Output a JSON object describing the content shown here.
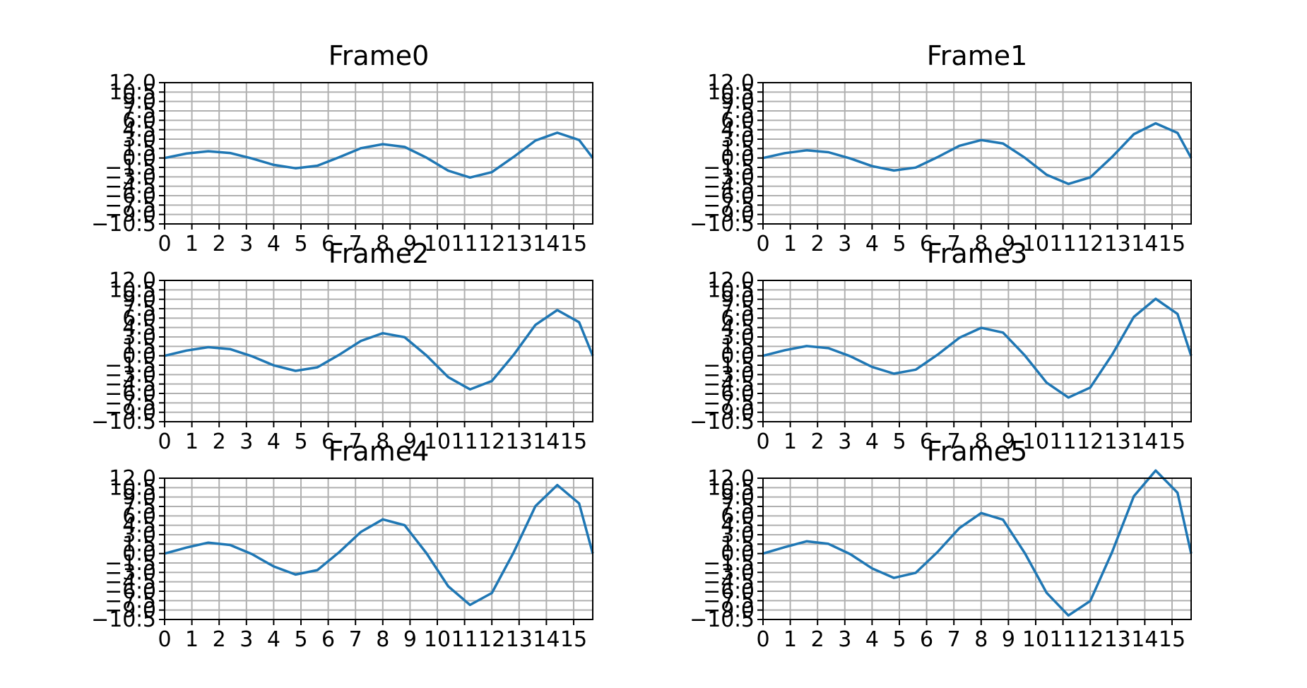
{
  "figure": {
    "title": "",
    "grid": true,
    "line_color": "#1f77b4",
    "grid_color": "#b0b0b0"
  },
  "chart_data": [
    {
      "type": "line",
      "title": "Frame0",
      "xlabel": "",
      "ylabel": "",
      "xlim": [
        0,
        15.7
      ],
      "ylim": [
        -10.5,
        12.0
      ],
      "xticks": [
        0,
        1,
        2,
        3,
        4,
        5,
        6,
        7,
        8,
        9,
        10,
        11,
        12,
        13,
        14,
        15
      ],
      "yticks": [
        -10.5,
        -9.0,
        -7.5,
        -6.0,
        -4.5,
        -3.0,
        -1.5,
        0.0,
        1.5,
        3.0,
        4.5,
        6.0,
        7.5,
        9.0,
        10.5,
        12.0
      ],
      "ytick_labels": [
        "−10.5",
        "−9.0",
        "−7.5",
        "−6.0",
        "−4.5",
        "−3.0",
        "−1.5",
        "0.0",
        "1.5",
        "3.0",
        "4.5",
        "6.0",
        "7.5",
        "9.0",
        "10.5",
        "12.0"
      ],
      "grid": true,
      "series": [
        {
          "x": [
            0,
            0.8,
            1.6,
            2.4,
            3.2,
            4.0,
            4.8,
            5.6,
            6.4,
            7.2,
            8.0,
            8.8,
            9.6,
            10.4,
            11.2,
            12.0,
            12.8,
            13.6,
            14.4,
            15.2,
            15.7
          ],
          "values": [
            0.0,
            0.71,
            1.08,
            0.79,
            -0.07,
            -1.09,
            -1.63,
            -1.23,
            0.12,
            1.56,
            2.2,
            1.76,
            0.06,
            -2.02,
            -3.11,
            -2.25,
            0.18,
            2.78,
            4.02,
            2.86,
            0.01
          ]
        }
      ]
    },
    {
      "type": "line",
      "title": "Frame1",
      "xlabel": "",
      "ylabel": "",
      "xlim": [
        0,
        15.7
      ],
      "ylim": [
        -10.5,
        12.0
      ],
      "xticks": [
        0,
        1,
        2,
        3,
        4,
        5,
        6,
        7,
        8,
        9,
        10,
        11,
        12,
        13,
        14,
        15
      ],
      "yticks": [
        -10.5,
        -9.0,
        -7.5,
        -6.0,
        -4.5,
        -3.0,
        -1.5,
        0.0,
        1.5,
        3.0,
        4.5,
        6.0,
        7.5,
        9.0,
        10.5,
        12.0
      ],
      "ytick_labels": [
        "−10.5",
        "−9.0",
        "−7.5",
        "−6.0",
        "−4.5",
        "−3.0",
        "−1.5",
        "0.0",
        "1.5",
        "3.0",
        "4.5",
        "6.0",
        "7.5",
        "9.0",
        "10.5",
        "12.0"
      ],
      "grid": true,
      "series": [
        {
          "x": [
            0,
            0.8,
            1.6,
            2.4,
            3.2,
            4.0,
            4.8,
            5.6,
            6.4,
            7.2,
            8.0,
            8.8,
            9.6,
            10.4,
            11.2,
            12.0,
            12.8,
            13.6,
            14.4,
            15.2,
            15.7
          ],
          "values": [
            0.0,
            0.77,
            1.22,
            0.92,
            -0.07,
            -1.3,
            -2.0,
            -1.52,
            0.13,
            1.94,
            2.85,
            2.31,
            0.05,
            -2.67,
            -4.13,
            -3.09,
            0.16,
            3.79,
            5.52,
            4.0,
            0.01
          ]
        }
      ]
    },
    {
      "type": "line",
      "title": "Frame2",
      "xlabel": "",
      "ylabel": "",
      "xlim": [
        0,
        15.7
      ],
      "ylim": [
        -10.5,
        12.0
      ],
      "xticks": [
        0,
        1,
        2,
        3,
        4,
        5,
        6,
        7,
        8,
        9,
        10,
        11,
        12,
        13,
        14,
        15
      ],
      "yticks": [
        -10.5,
        -9.0,
        -7.5,
        -6.0,
        -4.5,
        -3.0,
        -1.5,
        0.0,
        1.5,
        3.0,
        4.5,
        6.0,
        7.5,
        9.0,
        10.5,
        12.0
      ],
      "ytick_labels": [
        "−10.5",
        "−9.0",
        "−7.5",
        "−6.0",
        "−4.5",
        "−3.0",
        "−1.5",
        "0.0",
        "1.5",
        "3.0",
        "4.5",
        "6.0",
        "7.5",
        "9.0",
        "10.5",
        "12.0"
      ],
      "grid": true,
      "series": [
        {
          "x": [
            0,
            0.8,
            1.6,
            2.4,
            3.2,
            4.0,
            4.8,
            5.6,
            6.4,
            7.2,
            8.0,
            8.8,
            9.6,
            10.4,
            11.2,
            12.0,
            12.8,
            13.6,
            14.4,
            15.2,
            15.7
          ],
          "values": [
            0.0,
            0.83,
            1.37,
            1.06,
            -0.07,
            -1.52,
            -2.4,
            -1.84,
            0.15,
            2.37,
            3.6,
            2.95,
            0.06,
            -3.4,
            -5.35,
            -4.02,
            0.15,
            4.92,
            7.27,
            5.34,
            0.01
          ]
        }
      ]
    },
    {
      "type": "line",
      "title": "Frame3",
      "xlabel": "",
      "ylabel": "",
      "xlim": [
        0,
        15.7
      ],
      "ylim": [
        -10.5,
        12.0
      ],
      "xticks": [
        0,
        1,
        2,
        3,
        4,
        5,
        6,
        7,
        8,
        9,
        10,
        11,
        12,
        13,
        14,
        15
      ],
      "yticks": [
        -10.5,
        -9.0,
        -7.5,
        -6.0,
        -4.5,
        -3.0,
        -1.5,
        0.0,
        1.5,
        3.0,
        4.5,
        6.0,
        7.5,
        9.0,
        10.5,
        12.0
      ],
      "ytick_labels": [
        "−10.5",
        "−9.0",
        "−7.5",
        "−6.0",
        "−4.5",
        "−3.0",
        "−1.5",
        "0.0",
        "1.5",
        "3.0",
        "4.5",
        "6.0",
        "7.5",
        "9.0",
        "10.5",
        "12.0"
      ],
      "grid": true,
      "series": [
        {
          "x": [
            0,
            0.8,
            1.6,
            2.4,
            3.2,
            4.0,
            4.8,
            5.6,
            6.4,
            7.2,
            8.0,
            8.8,
            9.6,
            10.4,
            11.2,
            12.0,
            12.8,
            13.6,
            14.4,
            15.2,
            15.7
          ],
          "values": [
            0.0,
            0.88,
            1.55,
            1.21,
            -0.07,
            -1.77,
            -2.85,
            -2.21,
            0.17,
            2.86,
            4.45,
            3.7,
            0.06,
            -4.28,
            -6.65,
            -5.07,
            0.17,
            6.2,
            9.07,
            6.67,
            0.01
          ]
        }
      ]
    },
    {
      "type": "line",
      "title": "Frame4",
      "xlabel": "",
      "ylabel": "",
      "xlim": [
        0,
        15.7
      ],
      "ylim": [
        -10.5,
        12.0
      ],
      "xticks": [
        0,
        1,
        2,
        3,
        4,
        5,
        6,
        7,
        8,
        9,
        10,
        11,
        12,
        13,
        14,
        15
      ],
      "yticks": [
        -10.5,
        -9.0,
        -7.5,
        -6.0,
        -4.5,
        -3.0,
        -1.5,
        0.0,
        1.5,
        3.0,
        4.5,
        6.0,
        7.5,
        9.0,
        10.5,
        12.0
      ],
      "ytick_labels": [
        "−10.5",
        "−9.0",
        "−7.5",
        "−6.0",
        "−4.5",
        "−3.0",
        "−1.5",
        "0.0",
        "1.5",
        "3.0",
        "4.5",
        "6.0",
        "7.5",
        "9.0",
        "10.5",
        "12.0"
      ],
      "grid": true,
      "series": [
        {
          "x": [
            0,
            0.8,
            1.6,
            2.4,
            3.2,
            4.0,
            4.8,
            5.6,
            6.4,
            7.2,
            8.0,
            8.8,
            9.6,
            10.4,
            11.2,
            12.0,
            12.8,
            13.6,
            14.4,
            15.2,
            15.7
          ],
          "values": [
            0.0,
            0.95,
            1.74,
            1.37,
            -0.08,
            -2.05,
            -3.35,
            -2.64,
            0.21,
            3.45,
            5.44,
            4.52,
            0.08,
            -5.21,
            -8.18,
            -6.28,
            0.2,
            7.56,
            10.91,
            7.98,
            0.01
          ]
        }
      ]
    },
    {
      "type": "line",
      "title": "Frame5",
      "xlabel": "",
      "ylabel": "",
      "xlim": [
        0,
        15.7
      ],
      "ylim": [
        -10.5,
        12.0
      ],
      "xticks": [
        0,
        1,
        2,
        3,
        4,
        5,
        6,
        7,
        8,
        9,
        10,
        11,
        12,
        13,
        14,
        15
      ],
      "yticks": [
        -10.5,
        -9.0,
        -7.5,
        -6.0,
        -4.5,
        -3.0,
        -1.5,
        0.0,
        1.5,
        3.0,
        4.5,
        6.0,
        7.5,
        9.0,
        10.5,
        12.0
      ],
      "ytick_labels": [
        "−10.5",
        "−9.0",
        "−7.5",
        "−6.0",
        "−4.5",
        "−3.0",
        "−1.5",
        "0.0",
        "1.5",
        "3.0",
        "4.5",
        "6.0",
        "7.5",
        "9.0",
        "10.5",
        "12.0"
      ],
      "grid": true,
      "series": [
        {
          "x": [
            0,
            0.8,
            1.6,
            2.4,
            3.2,
            4.0,
            4.8,
            5.6,
            6.4,
            7.2,
            8.0,
            8.8,
            9.6,
            10.4,
            11.2,
            12.0,
            12.8,
            13.6,
            14.4,
            15.2,
            15.7
          ],
          "values": [
            0.0,
            1.02,
            1.95,
            1.55,
            -0.09,
            -2.37,
            -3.87,
            -3.06,
            0.24,
            4.05,
            6.45,
            5.4,
            0.09,
            -6.25,
            -9.86,
            -7.55,
            0.23,
            9.13,
            13.23,
            9.69,
            0.01
          ]
        }
      ]
    }
  ]
}
